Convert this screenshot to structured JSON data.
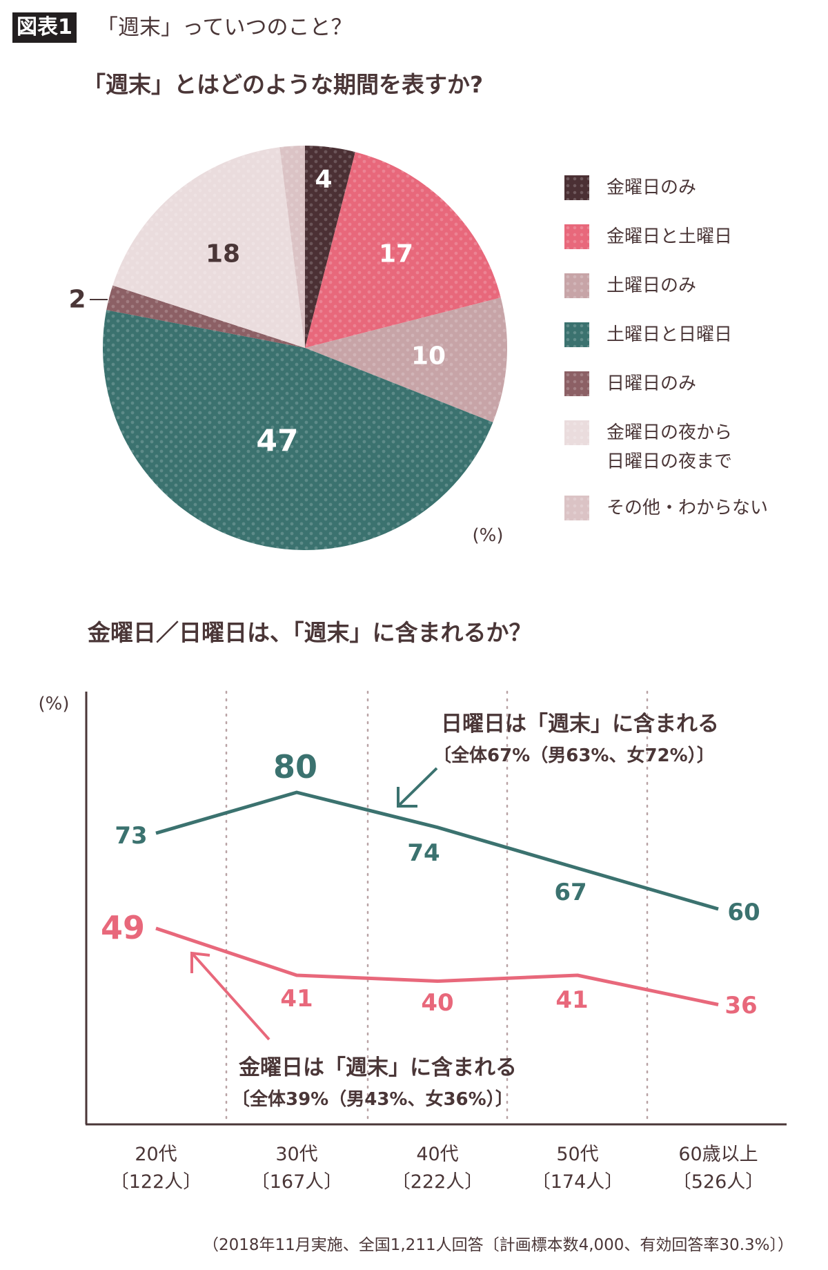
{
  "header": {
    "badge": "図表1",
    "title": "「週末」っていつのこと？"
  },
  "chart_data": [
    {
      "type": "pie",
      "title": "「週末」とはどのような期間を表すか?",
      "unit_label": "(%)",
      "slices": [
        {
          "label": "金曜日のみ",
          "value": 4,
          "color": "#4b3034"
        },
        {
          "label": "金曜日と土曜日",
          "value": 17,
          "color": "#e8687b"
        },
        {
          "label": "土曜日のみ",
          "value": 10,
          "color": "#c7a4a7"
        },
        {
          "label": "土曜日と日曜日",
          "value": 47,
          "color": "#3b726f"
        },
        {
          "label": "日曜日のみ",
          "value": 2,
          "color": "#8c6065"
        },
        {
          "label": "金曜日の夜から日曜日の夜まで",
          "label_lines": [
            "金曜日の夜から",
            "日曜日の夜まで"
          ],
          "value": 18,
          "color": "#eadcdd"
        },
        {
          "label": "その他・わからない",
          "value": 2,
          "color": "#dbc3c5"
        }
      ],
      "data_labels": [
        "4",
        "17",
        "10",
        "47",
        "2",
        "18"
      ],
      "legend_placement": "right"
    },
    {
      "type": "line",
      "title": "金曜日／日曜日は、「週末」に含まれるか？",
      "ylabel": "(%)",
      "categories": [
        "20代",
        "30代",
        "40代",
        "50代",
        "60歳以上"
      ],
      "category_counts": [
        "〔122人〕",
        "〔167人〕",
        "〔222人〕",
        "〔174人〕",
        "〔526人〕"
      ],
      "grid": "vertical dotted",
      "series": [
        {
          "name": "日曜日は「週末」に含まれる",
          "note": "〔全体67%（男63%、女72%）〕",
          "values": [
            73,
            80,
            74,
            67,
            60
          ],
          "color": "#3b726f"
        },
        {
          "name": "金曜日は「週末」に含まれる",
          "note": "〔全体39%（男43%、女36%）〕",
          "values": [
            49,
            41,
            40,
            41,
            36
          ],
          "color": "#e8687b"
        }
      ]
    }
  ],
  "footnote": "（2018年11月実施、全国1,211人回答〔計画標本数4,000、有効回答率30.3%〕）"
}
